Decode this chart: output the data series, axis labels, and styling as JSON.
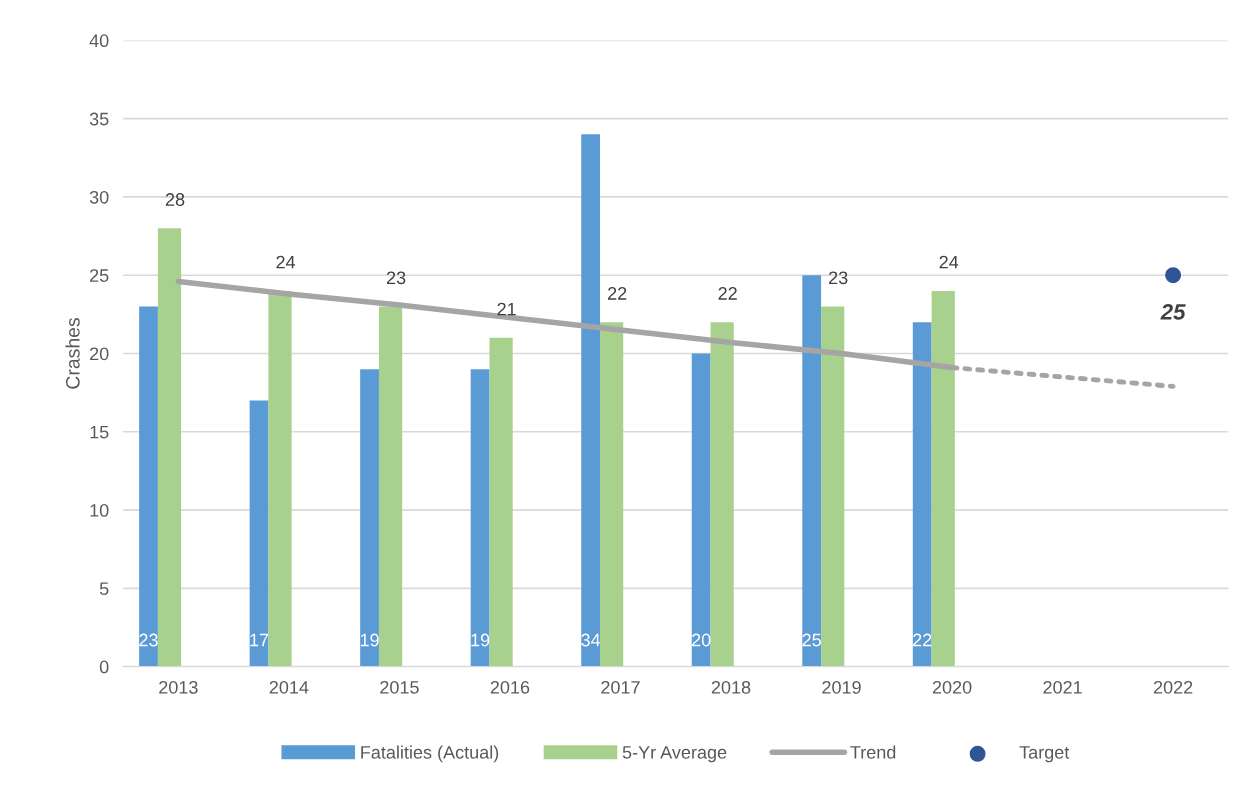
{
  "chart_data": {
    "type": "bar",
    "ylabel": "Crashes",
    "categories": [
      "2013",
      "2014",
      "2015",
      "2016",
      "2017",
      "2018",
      "2019",
      "2020",
      "2021",
      "2022"
    ],
    "series": [
      {
        "name": "Fatalities (Actual)",
        "color": "#5b9bd5",
        "values": [
          23,
          17,
          19,
          19,
          34,
          20,
          25,
          22,
          null,
          null
        ],
        "value_labels": [
          "23",
          "17",
          "19",
          "19",
          "34",
          "20",
          "25",
          "22",
          null,
          null
        ]
      },
      {
        "name": "5-Yr Average",
        "color": "#a9d18e",
        "values": [
          28,
          24,
          23,
          21,
          22,
          22,
          23,
          24,
          null,
          null
        ],
        "value_labels": [
          "28",
          "24",
          "23",
          "21",
          "22",
          "22",
          "23",
          "24",
          null,
          null
        ]
      },
      {
        "name": "Trend",
        "type": "line",
        "color": "#a5a5a5",
        "line_style": "solid",
        "marker": "none",
        "values": [
          24.6,
          23.8,
          23.1,
          22.3,
          21.5,
          20.7,
          20.0,
          19.1,
          null,
          null
        ]
      },
      {
        "type": "line",
        "color": "#a5a5a5",
        "line_style": "dotted",
        "marker": "none",
        "values": [
          null,
          null,
          null,
          null,
          null,
          null,
          null,
          19.1,
          18.5,
          17.9
        ]
      },
      {
        "name": "Target",
        "type": "scatter",
        "color": "#2f5597",
        "marker": "circle",
        "values": [
          null,
          null,
          null,
          null,
          null,
          null,
          null,
          null,
          null,
          25
        ],
        "value_labels": [
          null,
          null,
          null,
          null,
          null,
          null,
          null,
          null,
          null,
          "25"
        ]
      }
    ],
    "ylim": [
      0,
      40
    ],
    "yticks": [
      0,
      5,
      10,
      15,
      20,
      25,
      30,
      35,
      40
    ],
    "grid": "y",
    "legend": "bottom"
  }
}
